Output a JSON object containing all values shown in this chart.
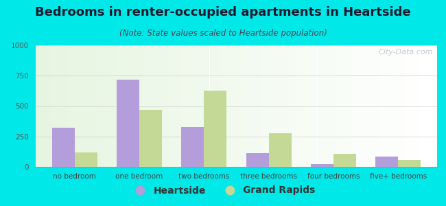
{
  "title": "Bedrooms in renter-occupied apartments in Heartside",
  "subtitle": "(Note: State values scaled to Heartside population)",
  "categories": [
    "no bedroom",
    "one bedroom",
    "two bedrooms",
    "three bedrooms",
    "four bedrooms",
    "five+ bedrooms"
  ],
  "heartside": [
    320,
    720,
    325,
    115,
    25,
    85
  ],
  "grand_rapids": [
    120,
    470,
    625,
    275,
    110,
    55
  ],
  "heartside_color": "#b39ddb",
  "grand_rapids_color": "#c5d996",
  "ylim": [
    0,
    1000
  ],
  "yticks": [
    0,
    250,
    500,
    750,
    1000
  ],
  "background_outer": "#00e8e8",
  "bar_width": 0.35,
  "title_fontsize": 13,
  "subtitle_fontsize": 8.5,
  "tick_fontsize": 7.5,
  "legend_fontsize": 10,
  "watermark_text": "City-Data.com"
}
